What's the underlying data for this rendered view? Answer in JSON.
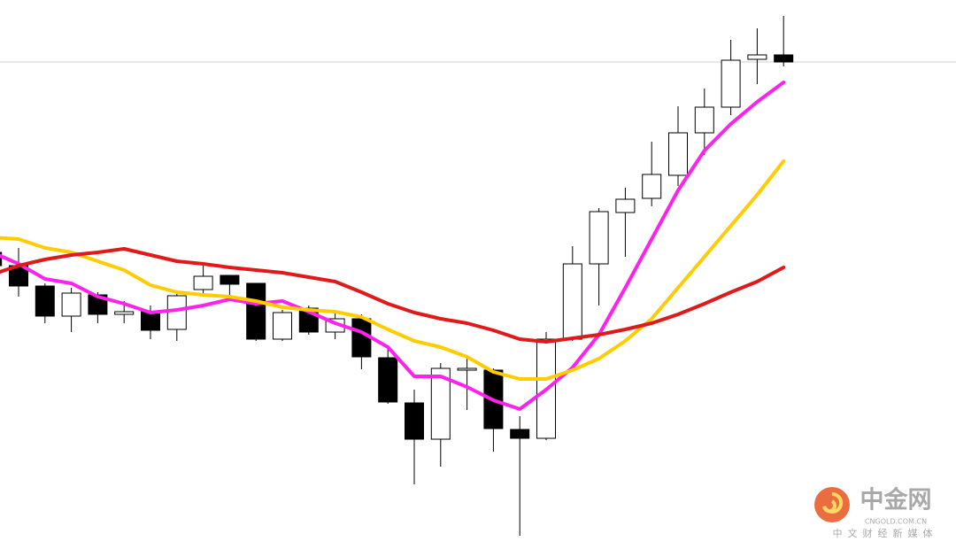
{
  "chart_data": {
    "type": "candlestick",
    "categories": [
      null,
      null,
      null,
      null,
      null,
      null,
      null,
      null,
      null,
      null,
      null,
      null,
      null,
      null,
      null,
      null,
      null,
      null,
      null,
      null,
      null,
      null,
      null,
      null,
      null,
      null,
      null,
      null,
      null,
      null,
      null
    ],
    "open": [
      335,
      320,
      297,
      263,
      287,
      265,
      268,
      248,
      293,
      309,
      300,
      237,
      272,
      245,
      260,
      216,
      165,
      124,
      202,
      202,
      135,
      125,
      237,
      322,
      380,
      396,
      422,
      470,
      499,
      553,
      558
    ],
    "high": [
      340,
      340,
      300,
      295,
      290,
      280,
      275,
      290,
      320,
      309,
      300,
      270,
      275,
      268,
      265,
      230,
      180,
      210,
      218,
      204,
      150,
      245,
      342,
      385,
      408,
      460,
      500,
      520,
      575,
      588,
      602
    ],
    "low": [
      315,
      285,
      255,
      245,
      255,
      255,
      237,
      235,
      285,
      287,
      235,
      235,
      242,
      237,
      203,
      164,
      73,
      93,
      157,
      110,
      15,
      123,
      235,
      275,
      330,
      387,
      410,
      445,
      490,
      525,
      545
    ],
    "close": [
      320,
      297,
      263,
      289,
      265,
      268,
      247,
      286,
      308,
      299,
      237,
      267,
      245,
      260,
      217,
      166,
      124,
      204,
      204,
      136,
      125,
      237,
      322,
      381,
      395,
      423,
      470,
      499,
      552,
      558,
      550
    ],
    "up_color": "#ffffff",
    "down_color": "#000000",
    "candle_edge": "#000000",
    "series": [
      {
        "color": "#ff22ee",
        "values": [
          335,
          322,
          305,
          300,
          285,
          277,
          267,
          270,
          275,
          282,
          277,
          280,
          268,
          255,
          245,
          228,
          195,
          195,
          183,
          168,
          158,
          180,
          205,
          242,
          295,
          350,
          405,
          450,
          480,
          505,
          527
        ]
      },
      {
        "color": "#ffcc00",
        "values": [
          352,
          350,
          340,
          335,
          325,
          315,
          298,
          290,
          287,
          285,
          280,
          273,
          270,
          268,
          262,
          248,
          235,
          228,
          217,
          200,
          192,
          192,
          202,
          215,
          235,
          260,
          295,
          330,
          365,
          400,
          438
        ]
      },
      {
        "color": "#e01a1a",
        "values": [
          310,
          320,
          327,
          332,
          335,
          339,
          332,
          325,
          322,
          318,
          315,
          312,
          307,
          302,
          290,
          277,
          267,
          260,
          255,
          247,
          237,
          234,
          238,
          242,
          248,
          255,
          265,
          277,
          290,
          302,
          318
        ]
      }
    ],
    "price_line": 550,
    "price_line_color": "#d0d0d0",
    "ylim": [
      0,
      620
    ]
  },
  "watermark": {
    "name": "中金网",
    "domain": "CNGOLD.COM.CN",
    "tagline": "中文财经新媒体"
  }
}
